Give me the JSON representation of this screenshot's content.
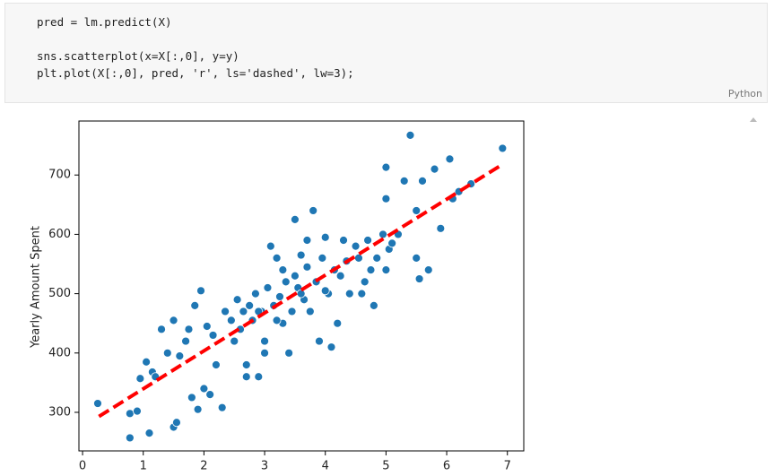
{
  "cell": {
    "code_lines": [
      "pred = lm.predict(X)",
      "sns.scatterplot(x=X[:,0], y=y)",
      "plt.plot(X[:,0], pred, 'r', ls='dashed', lw=3);"
    ],
    "language": "Python"
  },
  "chart_data": {
    "type": "scatter",
    "y_label": "Yearly Amount Spent",
    "xlim": [
      -0.06,
      7.27
    ],
    "ylim": [
      235,
      791
    ],
    "xticks": [
      0,
      1,
      2,
      3,
      4,
      5,
      6,
      7
    ],
    "yticks": [
      300,
      400,
      500,
      600,
      700
    ],
    "series": [
      {
        "type": "scatter",
        "color": "#1f77b4",
        "x": [
          0.25,
          0.78,
          0.78,
          0.9,
          1.1,
          0.95,
          1.05,
          1.15,
          1.5,
          1.55,
          1.3,
          1.5,
          1.85,
          1.95,
          1.8,
          1.9,
          2.0,
          2.1,
          2.3,
          2.2,
          2.5,
          2.7,
          2.9,
          3.1,
          3.2,
          3.5,
          3.6,
          3.8,
          4.0,
          4.1,
          4.3,
          4.5,
          4.6,
          4.8,
          5.0,
          5.0,
          5.3,
          5.4,
          5.5,
          5.6,
          5.8,
          6.05,
          6.1,
          6.2,
          6.4,
          6.92,
          5.55,
          5.7,
          5.9,
          5.0,
          5.5,
          4.2,
          3.9,
          3.4,
          3.0,
          2.7,
          1.2,
          1.4,
          1.6,
          1.7,
          1.75,
          2.05,
          2.15,
          2.35,
          2.45,
          2.55,
          2.6,
          2.65,
          2.75,
          2.8,
          2.85,
          2.95,
          3.0,
          3.05,
          3.15,
          3.25,
          3.3,
          3.35,
          3.45,
          3.5,
          3.55,
          3.65,
          3.7,
          3.75,
          3.85,
          3.95,
          4.05,
          4.15,
          4.25,
          4.35,
          4.4,
          4.55,
          4.65,
          4.7,
          4.75,
          4.85,
          4.95,
          5.05,
          5.1,
          5.2,
          3.3,
          3.6,
          3.2,
          4.0,
          2.9,
          3.7
        ],
        "values": [
          315,
          257,
          298,
          302,
          265,
          357,
          385,
          368,
          275,
          283,
          440,
          455,
          480,
          505,
          325,
          305,
          340,
          330,
          308,
          380,
          420,
          360,
          360,
          580,
          560,
          625,
          565,
          640,
          595,
          410,
          590,
          580,
          500,
          480,
          713,
          660,
          690,
          767,
          640,
          690,
          710,
          727,
          660,
          672,
          685,
          745,
          525,
          540,
          610,
          540,
          560,
          450,
          420,
          400,
          400,
          380,
          360,
          400,
          395,
          420,
          440,
          445,
          430,
          470,
          455,
          490,
          440,
          470,
          480,
          455,
          500,
          470,
          420,
          510,
          480,
          495,
          450,
          520,
          470,
          530,
          510,
          490,
          545,
          470,
          520,
          560,
          500,
          540,
          530,
          555,
          500,
          560,
          520,
          590,
          540,
          560,
          600,
          575,
          585,
          600,
          540,
          500,
          455,
          505,
          470,
          590
        ]
      },
      {
        "type": "line",
        "color": "#ff0000",
        "dashed": true,
        "x": [
          0.27,
          6.92
        ],
        "values": [
          293,
          718
        ]
      }
    ]
  }
}
